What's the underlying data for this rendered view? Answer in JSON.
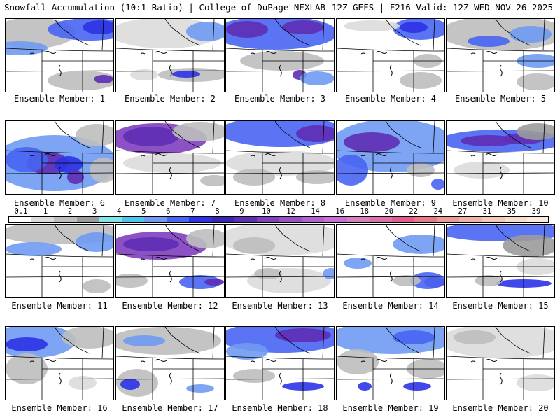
{
  "header": {
    "title_left": "Snowfall Accumulation (10:1 Ratio) | College of DuPage NEXLAB",
    "title_right": "12Z GEFS | F216 Valid: 12Z WED NOV 26 2025"
  },
  "colorbar": {
    "labels": [
      "0.1",
      "1",
      "2",
      "3",
      "4",
      "5",
      "6",
      "7",
      "8",
      "9",
      "10",
      "12",
      "14",
      "16",
      "18",
      "20",
      "22",
      "24",
      "27",
      "31",
      "35",
      "39"
    ],
    "colors": [
      "#ffffff",
      "#dcdcdc",
      "#bebebe",
      "#9b9b9b",
      "#7ee8e8",
      "#4fc4ee",
      "#6f9bf2",
      "#4865f2",
      "#2c33e6",
      "#3626b0",
      "#5e2eb4",
      "#7f3fbf",
      "#9a4fc7",
      "#b35fd0",
      "#c86fd6",
      "#d680c0",
      "#de6fa8",
      "#e25a90",
      "#e8798a",
      "#eb9a96",
      "#eeb3a8",
      "#f2c8b8",
      "#f5dccb",
      "#f9eadf"
    ]
  },
  "members": [
    {
      "caption": "Ensemble Member: 1"
    },
    {
      "caption": "Ensemble Member: 2"
    },
    {
      "caption": "Ensemble Member: 3"
    },
    {
      "caption": "Ensemble Member: 4"
    },
    {
      "caption": "Ensemble Member: 5"
    },
    {
      "caption": "Ensemble Member: 6"
    },
    {
      "caption": "Ensemble Member: 7"
    },
    {
      "caption": "Ensemble Member: 8"
    },
    {
      "caption": "Ensemble Member: 9"
    },
    {
      "caption": "Ensemble Member: 10"
    },
    {
      "caption": "Ensemble Member: 11"
    },
    {
      "caption": "Ensemble Member: 12"
    },
    {
      "caption": "Ensemble Member: 13"
    },
    {
      "caption": "Ensemble Member: 14"
    },
    {
      "caption": "Ensemble Member: 15"
    },
    {
      "caption": "Ensemble Member: 16"
    },
    {
      "caption": "Ensemble Member: 17"
    },
    {
      "caption": "Ensemble Member: 18"
    },
    {
      "caption": "Ensemble Member: 19"
    },
    {
      "caption": "Ensemble Member: 20"
    }
  ]
}
